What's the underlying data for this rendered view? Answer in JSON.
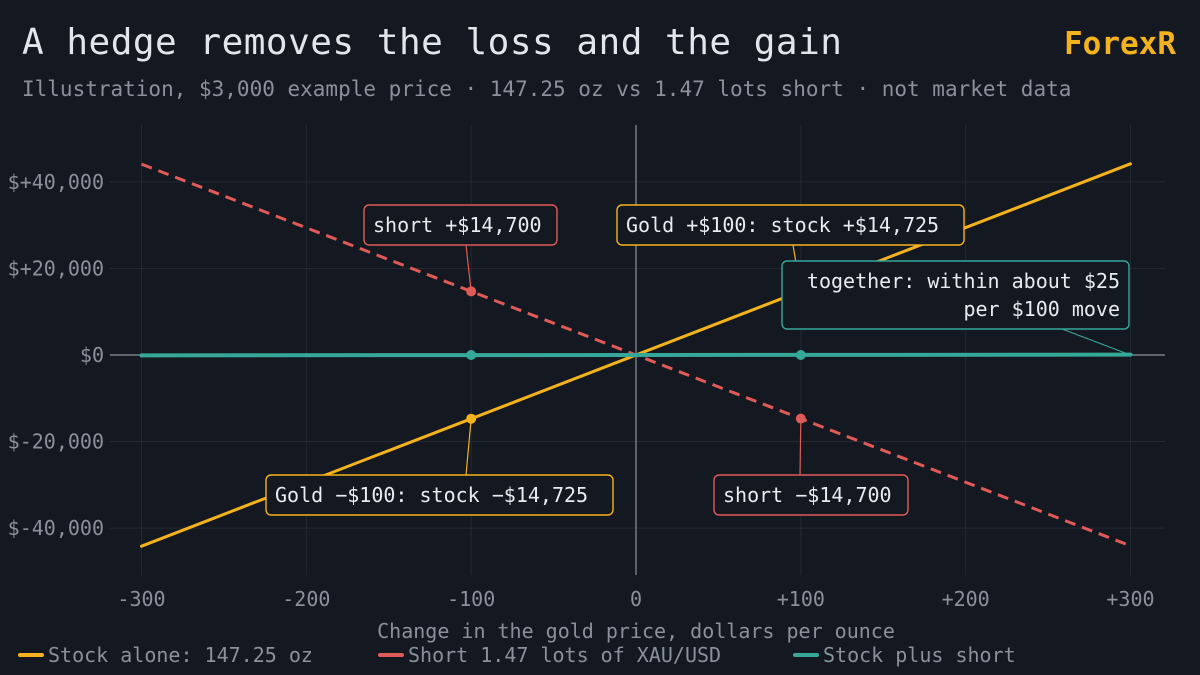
{
  "header": {
    "title": "A hedge removes the loss and the gain",
    "brand": "ForexR",
    "subtitle": "Illustration, $3,000 example price · 147.25 oz vs 1.47 lots short · not market data"
  },
  "chart_data": {
    "type": "line",
    "title": "A hedge removes the loss and the gain",
    "xlabel": "Change in the gold price, dollars per ounce",
    "ylabel": "",
    "xlim": [
      -300,
      300
    ],
    "ylim": [
      -50000,
      50000
    ],
    "x_ticks": [
      -300,
      -200,
      -100,
      0,
      100,
      200,
      300
    ],
    "x_tick_labels": [
      "-300",
      "-200",
      "-100",
      "0",
      "+100",
      "+200",
      "+300"
    ],
    "y_ticks": [
      40000,
      20000,
      0,
      -20000,
      -40000
    ],
    "y_tick_labels": [
      "$+40,000",
      "$+20,000",
      "$0",
      "$-20,000",
      "$-40,000"
    ],
    "grid": true,
    "legend_placement": "bottom",
    "series": [
      {
        "name": "Stock alone: 147.25 oz",
        "color": "#f4b21c",
        "dash": false,
        "x": [
          -300,
          300
        ],
        "y": [
          -44175,
          44175
        ]
      },
      {
        "name": "Short 1.47 lots of XAU/USD",
        "color": "#e05a57",
        "dash": true,
        "x": [
          -300,
          300
        ],
        "y": [
          44100,
          -44100
        ]
      },
      {
        "name": "Stock plus short",
        "color": "#36a89a",
        "dash": false,
        "x": [
          -300,
          300
        ],
        "y": [
          -75,
          75
        ]
      }
    ],
    "markers": [
      {
        "x": -100,
        "y": -14725,
        "color": "#f4b21c"
      },
      {
        "x": -100,
        "y": 14700,
        "color": "#e05a57"
      },
      {
        "x": 100,
        "y": -14700,
        "color": "#e05a57"
      },
      {
        "x": -100,
        "y": 0,
        "color": "#36a89a"
      },
      {
        "x": 100,
        "y": 0,
        "color": "#36a89a"
      }
    ],
    "annotations": [
      {
        "lines": [
          "short +$14,700"
        ],
        "color": "#e05a57",
        "point": [
          -100,
          14700
        ]
      },
      {
        "lines": [
          "Gold +$100: stock +$14,725"
        ],
        "color": "#f4b21c",
        "point": [
          100,
          14725
        ]
      },
      {
        "lines": [
          "together: within about $25",
          "per $100 move"
        ],
        "color": "#36a89a",
        "point": [
          300,
          0
        ]
      },
      {
        "lines": [
          "Gold −$100: stock −$14,725"
        ],
        "color": "#f4b21c",
        "point": [
          -100,
          -14725
        ]
      },
      {
        "lines": [
          "short −$14,700"
        ],
        "color": "#e05a57",
        "point": [
          100,
          -14700
        ]
      }
    ]
  }
}
